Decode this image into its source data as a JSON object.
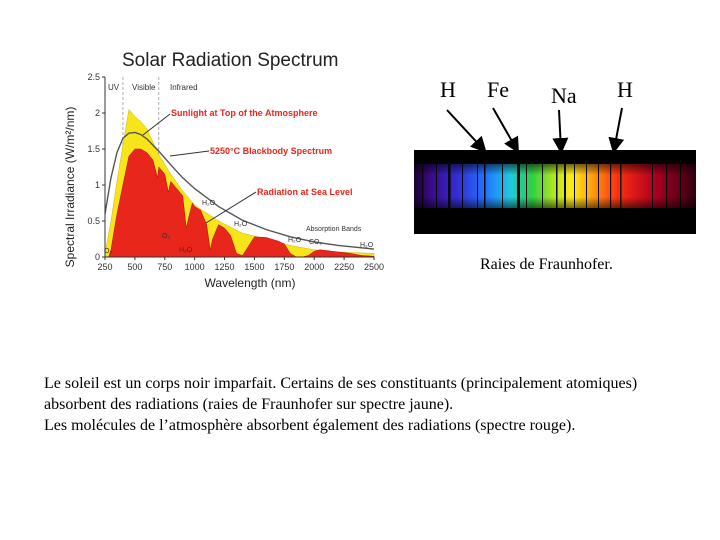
{
  "chart_data": {
    "type": "area",
    "title": "Solar Radiation Spectrum",
    "xlabel": "Wavelength (nm)",
    "ylabel": "Spectral Irradiance (W/m²/nm)",
    "xlim": [
      250,
      2500
    ],
    "ylim": [
      0,
      2.5
    ],
    "xticks": [
      "250",
      "500",
      "750",
      "1000",
      "1250",
      "1500",
      "1750",
      "2000",
      "2250",
      "2500"
    ],
    "yticks": [
      "0",
      "0.5",
      "1",
      "1.5",
      "2",
      "2.5"
    ],
    "regions": [
      "UV",
      "Visible",
      "Infrared"
    ],
    "series": [
      {
        "name": "Sunlight at Top of the Atmosphere",
        "color": "#f7e51a",
        "x": [
          250,
          300,
          350,
          400,
          450,
          500,
          550,
          600,
          700,
          800,
          900,
          1000,
          1200,
          1400,
          1600,
          1800,
          2000,
          2200,
          2500
        ],
        "y": [
          0.05,
          0.5,
          1.05,
          1.55,
          2.05,
          1.95,
          1.88,
          1.78,
          1.42,
          1.15,
          0.92,
          0.72,
          0.5,
          0.33,
          0.25,
          0.16,
          0.1,
          0.07,
          0.05
        ]
      },
      {
        "name": "5250°C Blackbody Spectrum",
        "color": "#555555",
        "x": [
          250,
          300,
          350,
          400,
          450,
          500,
          550,
          600,
          700,
          800,
          900,
          1000,
          1200,
          1400,
          1600,
          1800,
          2000,
          2200,
          2500
        ],
        "y": [
          0.6,
          1.1,
          1.45,
          1.65,
          1.72,
          1.73,
          1.7,
          1.64,
          1.47,
          1.28,
          1.1,
          0.95,
          0.7,
          0.51,
          0.38,
          0.28,
          0.21,
          0.16,
          0.11
        ]
      },
      {
        "name": "Radiation at Sea Level",
        "color": "#e8261c",
        "x": [
          280,
          300,
          350,
          400,
          450,
          500,
          550,
          600,
          650,
          690,
          700,
          750,
          780,
          800,
          850,
          900,
          930,
          950,
          980,
          1000,
          1050,
          1100,
          1130,
          1150,
          1200,
          1250,
          1300,
          1350,
          1400,
          1450,
          1500,
          1600,
          1700,
          1750,
          1800,
          1850,
          1900,
          1950,
          2000,
          2050,
          2100,
          2200,
          2300,
          2400,
          2500
        ],
        "y": [
          0,
          0.1,
          0.6,
          1.0,
          1.4,
          1.5,
          1.5,
          1.45,
          1.35,
          1.1,
          1.25,
          1.15,
          0.9,
          1.05,
          0.95,
          0.85,
          0.4,
          0.55,
          0.75,
          0.7,
          0.65,
          0.45,
          0.1,
          0.25,
          0.45,
          0.4,
          0.3,
          0.05,
          0.02,
          0.15,
          0.28,
          0.27,
          0.22,
          0.18,
          0.05,
          0.0,
          0.0,
          0.02,
          0.08,
          0.1,
          0.09,
          0.07,
          0.05,
          0.02,
          0.01
        ]
      }
    ],
    "annotations": [
      "O₃",
      "O₃",
      "H₂O",
      "H₂O",
      "H₂O",
      "H₂O",
      "CO₂",
      "H₂O",
      "Absorption Bands"
    ]
  },
  "spectrum": {
    "elements": [
      "H",
      "Fe",
      "Na",
      "H"
    ],
    "caption": "Raies de Fraunhofer."
  },
  "text": {
    "line1": "Le soleil est un corps noir imparfait. Certains de ses constituants (principalement atomiques)",
    "line2": "absorbent des radiations (raies de Fraunhofer sur spectre jaune).",
    "line3": "Les molécules de l’atmosphère absorbent également des radiations (spectre rouge)."
  }
}
